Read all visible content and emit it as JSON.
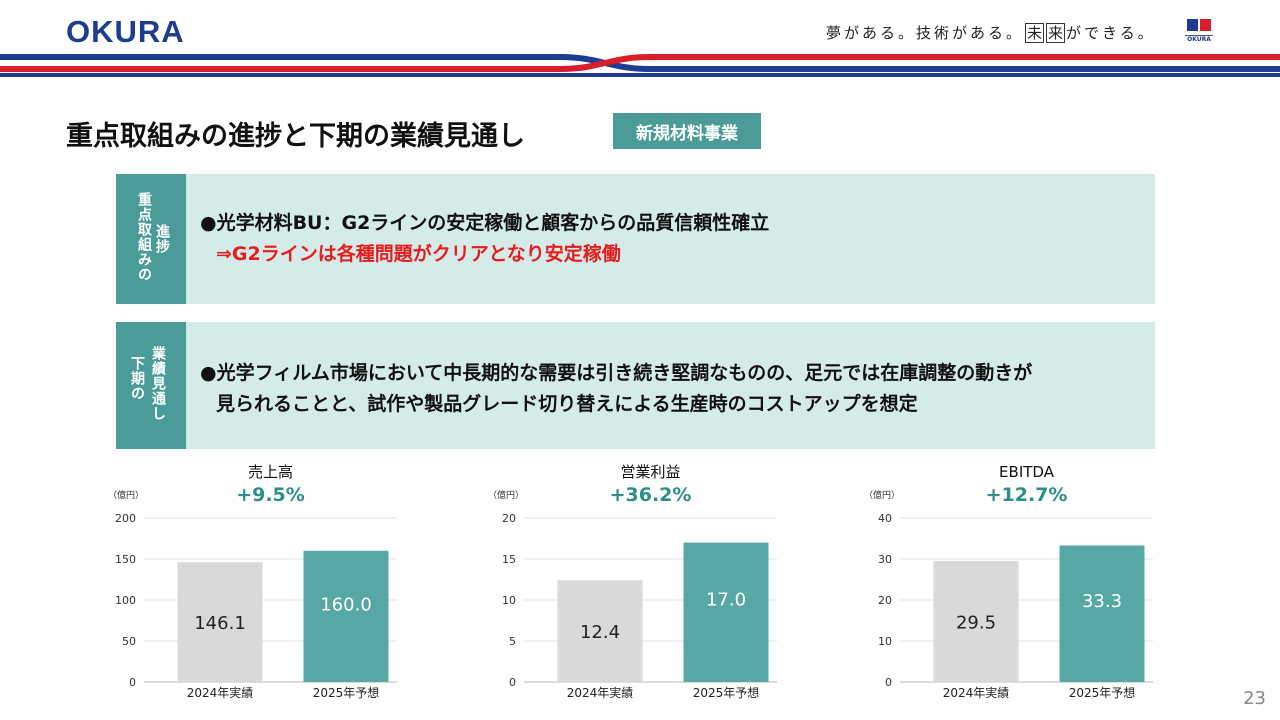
{
  "header": {
    "logo_text": "OKURA",
    "slogan_a": "夢がある。技術がある。",
    "slogan_box1": "未",
    "slogan_box2": "来",
    "slogan_b": "ができる。",
    "mini_logo_text": "OKURA",
    "brand_colors": {
      "blue": "#1f3c93",
      "red": "#d91e2a"
    }
  },
  "title": "重点取組みの進捗と下期の業績見通し",
  "tag": "新規材料事業",
  "panel1": {
    "side_col1": "重点取組みの",
    "side_col2": "進捗",
    "line1": "●光学材料BU：G2ラインの安定稼働と顧客からの品質信頼性確立",
    "line2": "⇒G2ラインは各種問題がクリアとなり安定稼働"
  },
  "panel2": {
    "side_col1": "下期の",
    "side_col2": "業績見通し",
    "line1": "●光学フィルム市場において中長期的な需要は引き続き堅調なものの、足元では在庫調整の動きが",
    "line2": "見られることと、試作や製品グレード切り替えによる生産時のコストアップを想定"
  },
  "colors": {
    "teal": "#4b9c98",
    "panel_bg": "#d5ebea",
    "bar_prev": "#d9d9d9",
    "bar_next": "#57a8a5",
    "growth": "#2c8f8a"
  },
  "chart_data": [
    {
      "type": "bar",
      "title": "売上高",
      "growth": "+9.5%",
      "unit": "（億円）",
      "categories": [
        "2024年実績",
        "2025年予想"
      ],
      "values": [
        146.1,
        160.0
      ],
      "labels": [
        "146.1",
        "160.0"
      ],
      "ylim": [
        0,
        200
      ],
      "yticks": [
        0,
        50,
        100,
        150,
        200
      ],
      "grid": true
    },
    {
      "type": "bar",
      "title": "営業利益",
      "growth": "+36.2%",
      "unit": "（億円）",
      "categories": [
        "2024年実績",
        "2025年予想"
      ],
      "values": [
        12.4,
        17.0
      ],
      "labels": [
        "12.4",
        "17.0"
      ],
      "ylim": [
        0,
        20
      ],
      "yticks": [
        0,
        5,
        10,
        15,
        20
      ],
      "grid": true
    },
    {
      "type": "bar",
      "title": "EBITDA",
      "growth": "+12.7%",
      "unit": "（億円）",
      "categories": [
        "2024年実績",
        "2025年予想"
      ],
      "values": [
        29.5,
        33.3
      ],
      "labels": [
        "29.5",
        "33.3"
      ],
      "ylim": [
        0,
        40
      ],
      "yticks": [
        0,
        10,
        20,
        30,
        40
      ],
      "grid": true
    }
  ],
  "page_number": "23"
}
